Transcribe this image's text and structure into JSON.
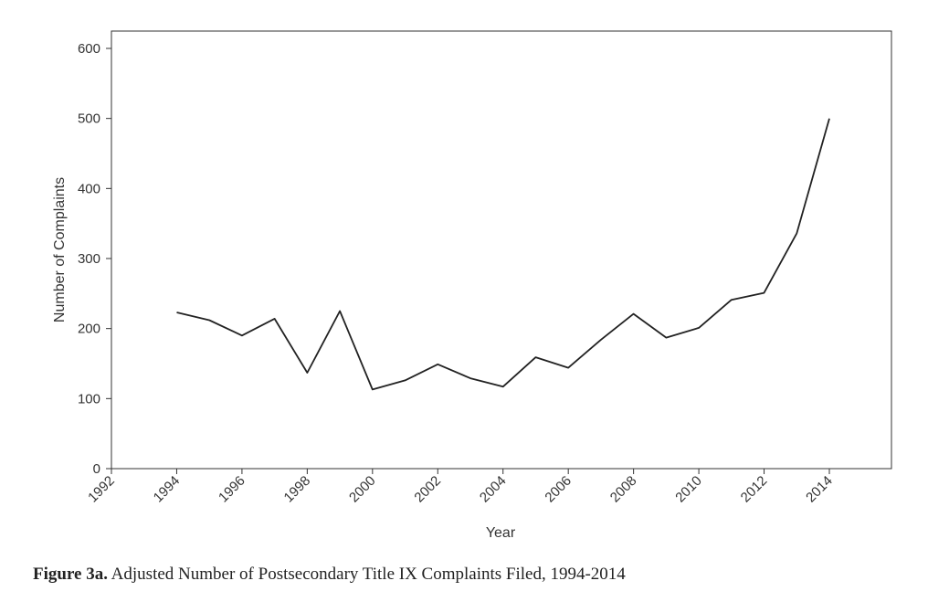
{
  "chart_data": {
    "type": "line",
    "title": "",
    "xlabel": "Year",
    "ylabel": "Number of Complaints",
    "xlim": [
      1992,
      2016
    ],
    "ylim": [
      0,
      600
    ],
    "x_ticks": [
      1992,
      1994,
      1996,
      1998,
      2000,
      2002,
      2004,
      2006,
      2008,
      2010,
      2012,
      2014
    ],
    "y_ticks": [
      0,
      100,
      200,
      300,
      400,
      500,
      600
    ],
    "grid": false,
    "legend": "none",
    "series": [
      {
        "color": "#222222",
        "x": [
          1994,
          1995,
          1996,
          1997,
          1998,
          1999,
          2000,
          2001,
          2002,
          2003,
          2004,
          2005,
          2006,
          2007,
          2008,
          2009,
          2010,
          2011,
          2012,
          2013,
          2014
        ],
        "values": [
          223,
          212,
          190,
          214,
          137,
          225,
          113,
          126,
          149,
          129,
          117,
          159,
          144,
          184,
          221,
          187,
          201,
          241,
          251,
          336,
          500
        ]
      }
    ]
  },
  "caption": {
    "label": "Figure 3a.",
    "text": " Adjusted Number of Postsecondary Title IX Complaints Filed, 1994-2014"
  }
}
